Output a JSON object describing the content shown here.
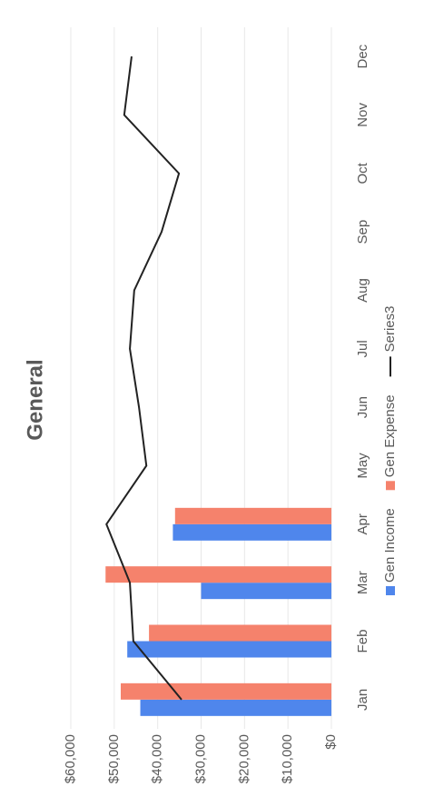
{
  "chart_data": {
    "type": "bar",
    "title": "General",
    "categories": [
      "Jan",
      "Feb",
      "Mar",
      "Apr",
      "May",
      "Jun",
      "Jul",
      "Aug",
      "Sep",
      "Oct",
      "Nov",
      "Dec"
    ],
    "series": [
      {
        "name": "Gen Income",
        "color": "#4f86ec",
        "values": [
          44000,
          47000,
          30000,
          36500,
          null,
          null,
          null,
          null,
          null,
          null,
          null,
          null
        ]
      },
      {
        "name": "Gen Expense",
        "color": "#f5826c",
        "values": [
          48500,
          42000,
          52000,
          36000,
          null,
          null,
          null,
          null,
          null,
          null,
          null,
          null
        ]
      },
      {
        "name": "Series3",
        "color": "#222222",
        "type": "line",
        "values": [
          34500,
          45600,
          46400,
          51800,
          42600,
          44300,
          46400,
          45400,
          39100,
          35100,
          47700,
          46000
        ]
      }
    ],
    "ylim": [
      0,
      60000
    ],
    "yticks": [
      {
        "value": 0,
        "label": "$0"
      },
      {
        "value": 10000,
        "label": "$10,000"
      },
      {
        "value": 20000,
        "label": "$20,000"
      },
      {
        "value": 30000,
        "label": "$30,000"
      },
      {
        "value": 40000,
        "label": "$40,000"
      },
      {
        "value": 50000,
        "label": "$50,000"
      },
      {
        "value": 60000,
        "label": "$60,000"
      }
    ],
    "grid": true,
    "legend": "bottom"
  }
}
